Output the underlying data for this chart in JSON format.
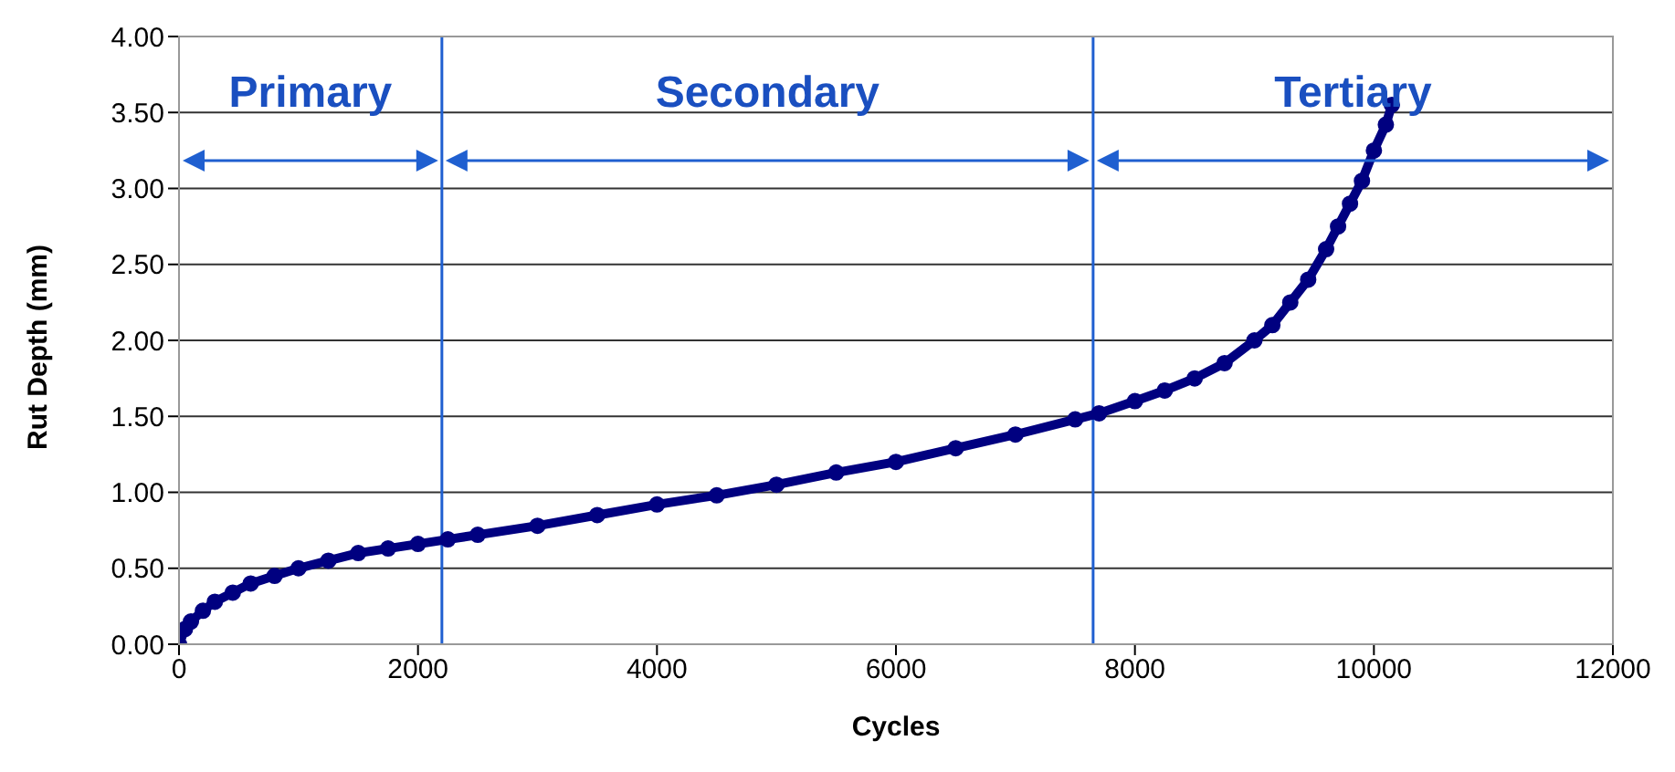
{
  "chart_data": {
    "type": "line",
    "xlabel": "Cycles",
    "ylabel": "Rut Depth (mm)",
    "xlim": [
      0,
      12000
    ],
    "xticks": [
      0,
      2000,
      4000,
      6000,
      8000,
      10000,
      12000
    ],
    "ylim": [
      0,
      4
    ],
    "yticks": [
      {
        "value": 0,
        "label": "0.00"
      },
      {
        "value": 0.5,
        "label": "0.50"
      },
      {
        "value": 1,
        "label": "1.00"
      },
      {
        "value": 1.5,
        "label": "1.50"
      },
      {
        "value": 2,
        "label": "2.00"
      },
      {
        "value": 2.5,
        "label": "2.50"
      },
      {
        "value": 3,
        "label": "3.00"
      },
      {
        "value": 3.5,
        "label": "3.50"
      },
      {
        "value": 4,
        "label": "4.00"
      }
    ],
    "grid": "y",
    "marker": "circle",
    "line_style": "solid",
    "series": [
      {
        "color": "#000080",
        "x": [
          0,
          50,
          100,
          200,
          300,
          450,
          600,
          800,
          1000,
          1250,
          1500,
          1750,
          2000,
          2250,
          2500,
          3000,
          3500,
          4000,
          4500,
          5000,
          5500,
          6000,
          6500,
          7000,
          7500,
          7700,
          8000,
          8250,
          8500,
          8750,
          9000,
          9150,
          9300,
          9450,
          9600,
          9700,
          9800,
          9900,
          10000,
          10100,
          10150
        ],
        "values": [
          0,
          0.1,
          0.15,
          0.22,
          0.28,
          0.34,
          0.4,
          0.45,
          0.5,
          0.55,
          0.6,
          0.63,
          0.66,
          0.69,
          0.72,
          0.78,
          0.85,
          0.92,
          0.98,
          1.05,
          1.13,
          1.2,
          1.29,
          1.38,
          1.48,
          1.52,
          1.6,
          1.67,
          1.75,
          1.85,
          2.0,
          2.1,
          2.25,
          2.4,
          2.6,
          2.75,
          2.9,
          3.05,
          3.25,
          3.42,
          3.55
        ]
      }
    ],
    "ref_lines": [
      {
        "axis": "x",
        "value": 2200,
        "color": "#1f5fd0"
      },
      {
        "axis": "x",
        "value": 7650,
        "color": "#1f5fd0"
      }
    ],
    "annotations": [
      "Primary",
      "Secondary",
      "Tertiary"
    ]
  }
}
